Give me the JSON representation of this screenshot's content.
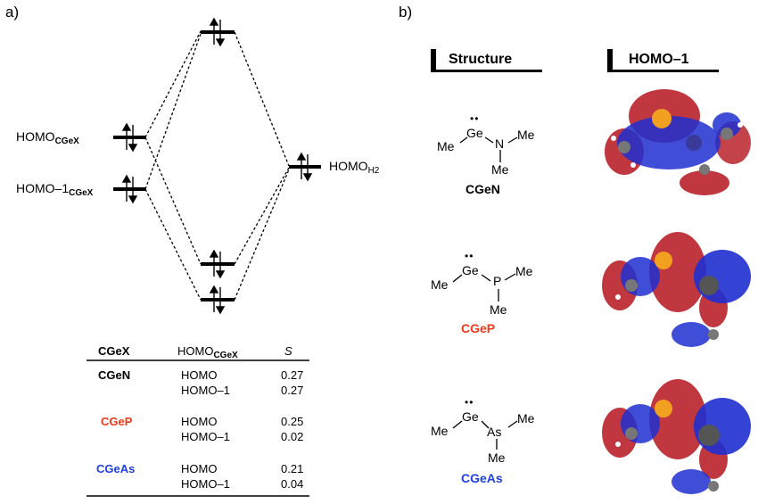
{
  "panels": {
    "a": "a)",
    "b": "b)"
  },
  "mo_diagram": {
    "left_levels": [
      {
        "text": "HOMO",
        "sub": "CGeX"
      },
      {
        "text": "HOMO–1",
        "sub": "CGeX"
      }
    ],
    "right_level": {
      "text": "HOMO",
      "sub": "H2"
    }
  },
  "table": {
    "headers": {
      "col1": "CGeX",
      "col2": "HOMO",
      "col2_sub": "CGeX",
      "col3": "S"
    },
    "groups": [
      {
        "name": "CGeN",
        "color": "#000000",
        "rows": [
          {
            "orbital": "HOMO",
            "s": "0.27"
          },
          {
            "orbital": "HOMO–1",
            "s": "0.27"
          }
        ]
      },
      {
        "name": "CGeP",
        "color": "#ee3a1c",
        "rows": [
          {
            "orbital": "HOMO",
            "s": "0.25"
          },
          {
            "orbital": "HOMO–1",
            "s": "0.02"
          }
        ]
      },
      {
        "name": "CGeAs",
        "color": "#1f3fe0",
        "rows": [
          {
            "orbital": "HOMO",
            "s": "0.21"
          },
          {
            "orbital": "HOMO–1",
            "s": "0.04"
          }
        ]
      }
    ]
  },
  "panel_b": {
    "headers": {
      "structure": "Structure",
      "orbital": "HOMO–1"
    },
    "structures": [
      {
        "name": "CGeN",
        "color": "#000000",
        "heteroatom": "N",
        "germanium": "Ge",
        "me_left": "Me",
        "me_right": "Me",
        "me_bottom": "Me",
        "dots": "••"
      },
      {
        "name": "CGeP",
        "color": "#ee3a1c",
        "heteroatom": "P",
        "germanium": "Ge",
        "me_left": "Me",
        "me_right": "Me",
        "me_bottom": "Me",
        "dots": "••"
      },
      {
        "name": "CGeAs",
        "color": "#1f3fe0",
        "heteroatom": "As",
        "germanium": "Ge",
        "me_left": "Me",
        "me_right": "Me",
        "me_bottom": "Me",
        "dots": "••"
      }
    ],
    "orbital_colors": {
      "positive": "#b5141e",
      "negative": "#1f2fd0",
      "germanium": "#f2a020",
      "carbon": "#777777"
    }
  }
}
